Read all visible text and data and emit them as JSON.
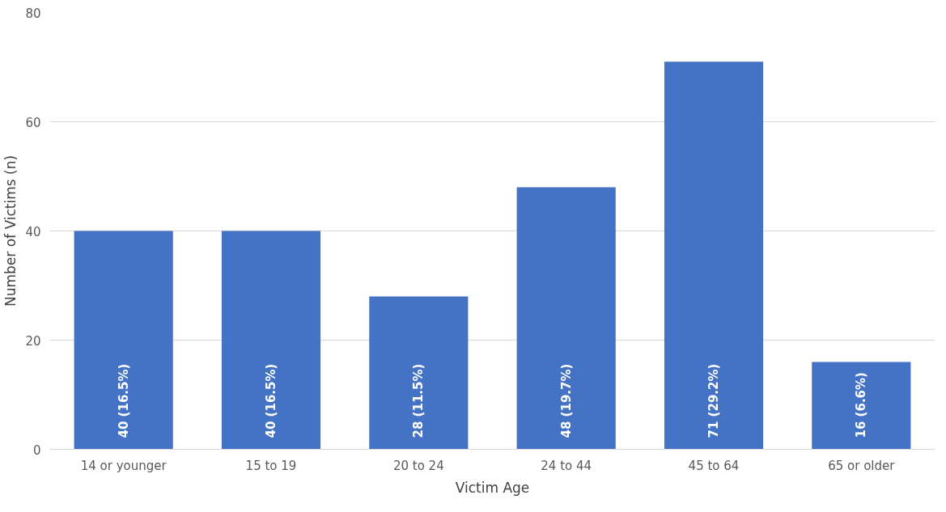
{
  "chart_data": {
    "type": "bar",
    "xlabel": "Victim Age",
    "ylabel": "Number of Victims (n)",
    "categories": [
      "14 or younger",
      "15 to 19",
      "20 to 24",
      "24 to 44",
      "45 to 64",
      "65 or older"
    ],
    "values": [
      40,
      40,
      28,
      48,
      71,
      16
    ],
    "value_labels": [
      "40 (16.5%)",
      "40 (16.5%)",
      "28 (11.5%)",
      "48 (19.7%)",
      "71 (29.2%)",
      "16 (6.6%)"
    ],
    "color": "#4472c4",
    "ylim": [
      0,
      80
    ],
    "yticks": [
      0,
      20,
      40,
      60,
      80
    ],
    "grid": "y"
  }
}
